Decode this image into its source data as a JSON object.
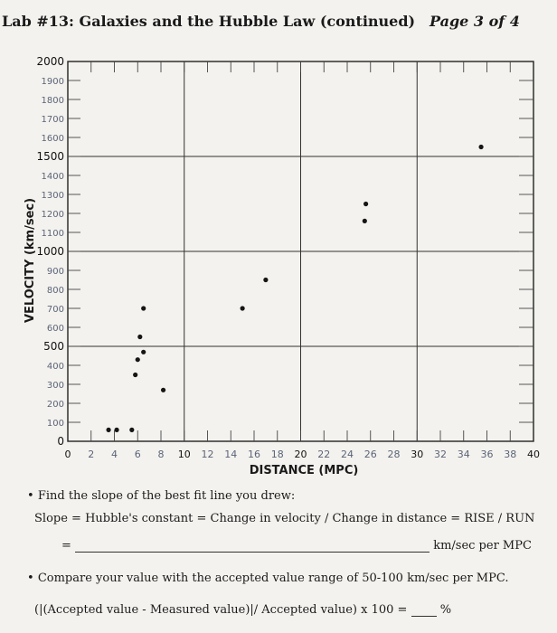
{
  "header": {
    "title": "Lab #13: Galaxies and the Hubble Law (continued)",
    "page": "Page 3 of 4"
  },
  "chart_data": {
    "type": "scatter",
    "title": "",
    "xlabel": "DISTANCE (MPC)",
    "ylabel": "VELOCITY (km/sec)",
    "xlim": [
      0,
      40
    ],
    "ylim": [
      0,
      2000
    ],
    "x_ticks": [
      "0",
      "2",
      "4",
      "6",
      "8",
      "10",
      "12",
      "14",
      "16",
      "18",
      "20",
      "22",
      "24",
      "26",
      "28",
      "30",
      "32",
      "34",
      "36",
      "38",
      "40"
    ],
    "y_ticks": [
      "0",
      "100",
      "200",
      "300",
      "400",
      "500",
      "600",
      "700",
      "800",
      "900",
      "1000",
      "1100",
      "1200",
      "1300",
      "1400",
      "1500",
      "1600",
      "1700",
      "1800",
      "1900",
      "2000"
    ],
    "grid": true,
    "points": [
      {
        "x": 3.5,
        "y": 60
      },
      {
        "x": 4.2,
        "y": 60
      },
      {
        "x": 5.5,
        "y": 60
      },
      {
        "x": 5.8,
        "y": 350
      },
      {
        "x": 6.0,
        "y": 430
      },
      {
        "x": 6.2,
        "y": 550
      },
      {
        "x": 6.5,
        "y": 470
      },
      {
        "x": 6.5,
        "y": 700
      },
      {
        "x": 8.2,
        "y": 270
      },
      {
        "x": 15.0,
        "y": 700
      },
      {
        "x": 17.0,
        "y": 850
      },
      {
        "x": 25.5,
        "y": 1160
      },
      {
        "x": 25.6,
        "y": 1250
      },
      {
        "x": 35.5,
        "y": 1550
      }
    ]
  },
  "questions": {
    "q1": "Find the slope of the best fit line you drew:",
    "q1_formula": "Slope = Hubble's constant = Change in velocity / Change in distance = RISE / RUN",
    "q1_eq": "=",
    "q1_unit": "km/sec per MPC",
    "q2": "Compare your value with the accepted value range of 50-100 km/sec per MPC.",
    "q2_formula": "(|(Accepted value - Measured value)|/ Accepted value) x 100 =",
    "q2_unit": "%"
  }
}
